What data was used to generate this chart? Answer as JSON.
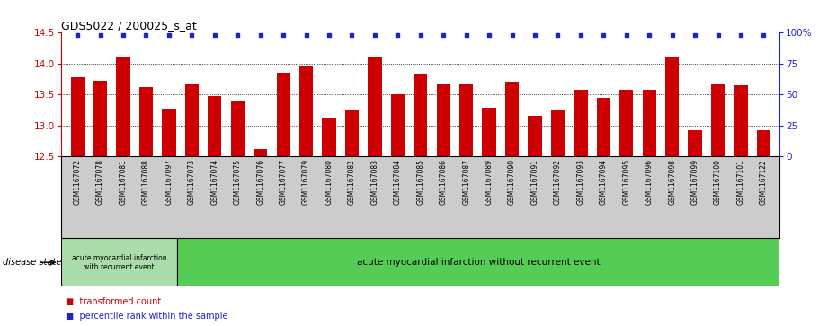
{
  "title": "GDS5022 / 200025_s_at",
  "samples": [
    "GSM1167072",
    "GSM1167078",
    "GSM1167081",
    "GSM1167088",
    "GSM1167097",
    "GSM1167073",
    "GSM1167074",
    "GSM1167075",
    "GSM1167076",
    "GSM1167077",
    "GSM1167079",
    "GSM1167080",
    "GSM1167082",
    "GSM1167083",
    "GSM1167084",
    "GSM1167085",
    "GSM1167086",
    "GSM1167087",
    "GSM1167089",
    "GSM1167090",
    "GSM1167091",
    "GSM1167092",
    "GSM1167093",
    "GSM1167094",
    "GSM1167095",
    "GSM1167096",
    "GSM1167098",
    "GSM1167099",
    "GSM1167100",
    "GSM1167101",
    "GSM1167122"
  ],
  "bar_values": [
    13.78,
    13.72,
    14.12,
    13.62,
    13.27,
    13.66,
    13.47,
    13.4,
    12.62,
    13.85,
    13.95,
    13.12,
    13.25,
    14.12,
    13.5,
    13.84,
    13.67,
    13.68,
    13.28,
    13.7,
    13.15,
    13.25,
    13.58,
    13.45,
    13.57,
    13.58,
    14.12,
    12.93,
    13.68,
    13.65,
    12.92
  ],
  "percentile_values": [
    100,
    100,
    100,
    100,
    100,
    100,
    100,
    100,
    100,
    100,
    100,
    100,
    100,
    100,
    100,
    100,
    100,
    100,
    100,
    100,
    100,
    100,
    100,
    100,
    100,
    100,
    100,
    100,
    100,
    100,
    100
  ],
  "bar_color": "#cc0000",
  "percentile_color": "#2222cc",
  "ylim_left": [
    12.5,
    14.5
  ],
  "ylim_right": [
    0,
    100
  ],
  "yticks_left": [
    12.5,
    13.0,
    13.5,
    14.0,
    14.5
  ],
  "yticks_right": [
    0,
    25,
    50,
    75,
    100
  ],
  "grid_lines": [
    13.0,
    13.5,
    14.0
  ],
  "group1_count": 5,
  "group1_label": "acute myocardial infarction\nwith recurrent event",
  "group2_label": "acute myocardial infarction without recurrent event",
  "disease_state_label": "disease state",
  "legend1": "transformed count",
  "legend2": "percentile rank within the sample",
  "group1_color": "#aaddaa",
  "group2_color": "#55cc55",
  "xtick_bg": "#cccccc",
  "bar_width": 0.6,
  "title_fontsize": 9,
  "tick_fontsize": 7.5,
  "sample_fontsize": 5.5,
  "group_fontsize1": 5.5,
  "group_fontsize2": 7.5,
  "legend_fontsize": 7
}
